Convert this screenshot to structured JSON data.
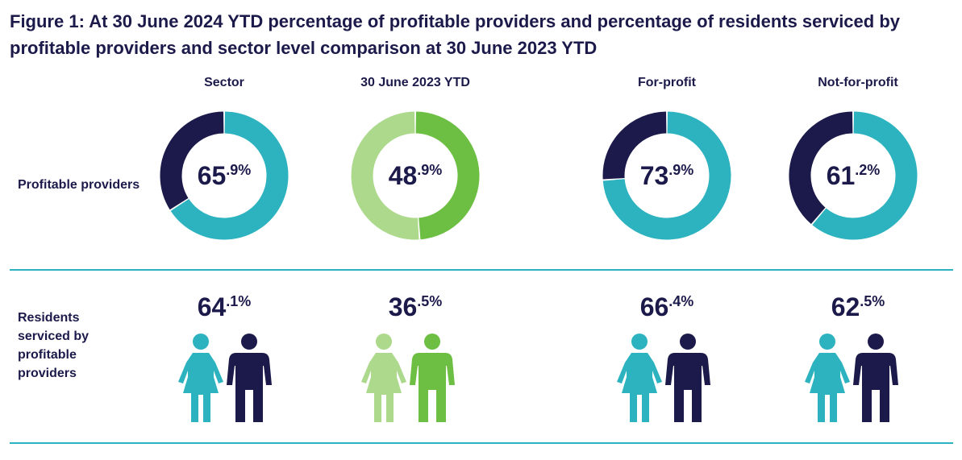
{
  "title": "Figure 1: At 30 June 2024 YTD percentage of profitable providers and percentage of residents serviced by profitable providers and sector level comparison at 30 June 2023 YTD",
  "rows": {
    "profitable": "Profitable providers",
    "residents": "Residents serviced by profitable providers"
  },
  "colors": {
    "teal": "#2db3bf",
    "navy": "#1b1a4a",
    "green": "#6dbf44",
    "light_green": "#acd98c",
    "divider": "#2db3bf"
  },
  "chart_data": {
    "type": "pie",
    "title": "Figure 1: At 30 June 2024 YTD percentage of profitable providers and percentage of residents serviced by profitable providers and sector level comparison at 30 June 2023 YTD",
    "categories": [
      "Sector",
      "30 June 2023 YTD",
      "For-profit",
      "Not-for-profit"
    ],
    "series": [
      {
        "name": "Profitable providers",
        "values": [
          65.9,
          48.9,
          73.9,
          61.2
        ],
        "display": [
          {
            "whole": "65",
            "decimal": ".9%"
          },
          {
            "whole": "48",
            "decimal": ".9%"
          },
          {
            "whole": "73",
            "decimal": ".9%"
          },
          {
            "whole": "61",
            "decimal": ".2%"
          }
        ]
      },
      {
        "name": "Residents serviced by profitable providers",
        "values": [
          64.1,
          36.5,
          66.4,
          62.5
        ],
        "display": [
          {
            "whole": "64",
            "decimal": ".1%"
          },
          {
            "whole": "36",
            "decimal": ".5%"
          },
          {
            "whole": "66",
            "decimal": ".4%"
          },
          {
            "whole": "62",
            "decimal": ".5%"
          }
        ]
      }
    ],
    "column_colors": [
      {
        "primary": "#2db3bf",
        "secondary": "#1b1a4a"
      },
      {
        "primary": "#6dbf44",
        "secondary": "#acd98c"
      },
      {
        "primary": "#2db3bf",
        "secondary": "#1b1a4a"
      },
      {
        "primary": "#2db3bf",
        "secondary": "#1b1a4a"
      }
    ]
  }
}
